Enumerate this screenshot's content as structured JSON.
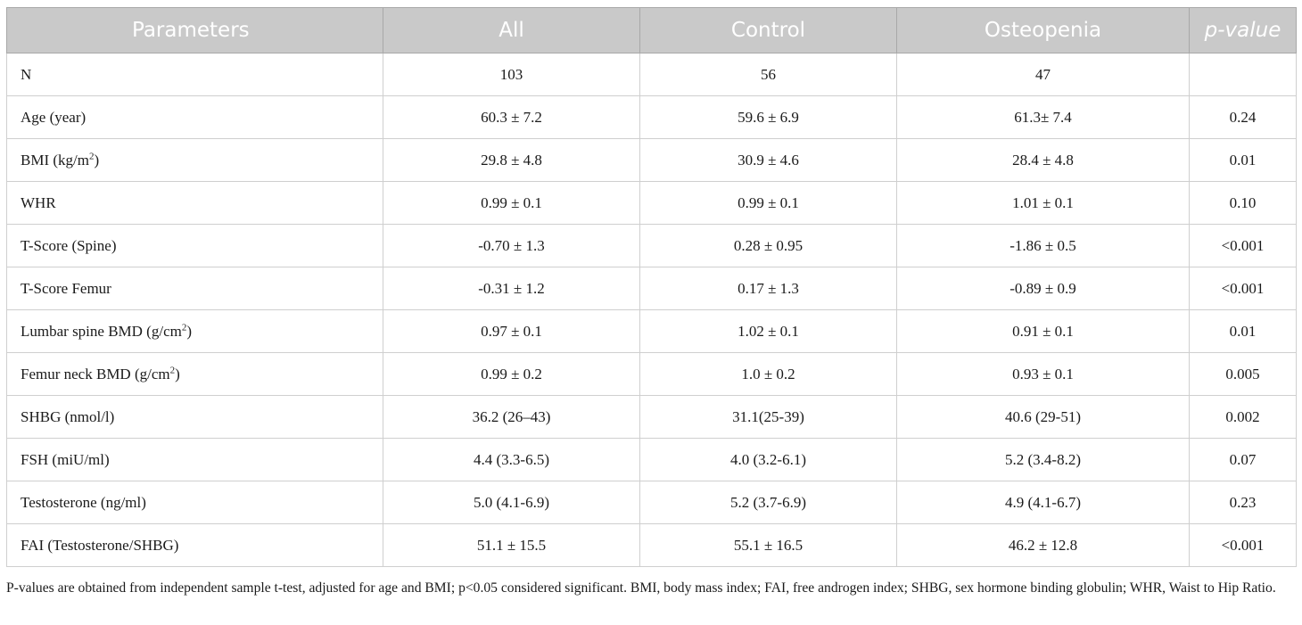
{
  "table": {
    "headers": [
      "Parameters",
      "All",
      "Control",
      "Osteopenia",
      "p-value"
    ],
    "rows": [
      {
        "param": "N",
        "sup": "",
        "all": "103",
        "control": "56",
        "osteopenia": "47",
        "p": ""
      },
      {
        "param": "Age (year)",
        "sup": "",
        "all": "60.3 ± 7.2",
        "control": "59.6 ± 6.9",
        "osteopenia": "61.3± 7.4",
        "p": "0.24"
      },
      {
        "param": "BMI (kg/m",
        "sup": "2",
        "suffix": ")",
        "all": "29.8 ± 4.8",
        "control": "30.9 ± 4.6",
        "osteopenia": "28.4 ± 4.8",
        "p": "0.01"
      },
      {
        "param": "WHR",
        "sup": "",
        "all": "0.99 ± 0.1",
        "control": "0.99 ± 0.1",
        "osteopenia": "1.01 ± 0.1",
        "p": "0.10"
      },
      {
        "param": "T-Score (Spine)",
        "sup": "",
        "all": "-0.70 ± 1.3",
        "control": "0.28 ± 0.95",
        "osteopenia": "-1.86 ± 0.5",
        "p": "<0.001"
      },
      {
        "param": "T-Score Femur",
        "sup": "",
        "all": "-0.31 ± 1.2",
        "control": "0.17 ± 1.3",
        "osteopenia": "-0.89 ± 0.9",
        "p": "<0.001"
      },
      {
        "param": "Lumbar spine BMD (g/cm",
        "sup": "2",
        "suffix": ")",
        "all": "0.97 ± 0.1",
        "control": "1.02 ± 0.1",
        "osteopenia": "0.91 ± 0.1",
        "p": "0.01"
      },
      {
        "param": "Femur neck BMD (g/cm",
        "sup": "2",
        "suffix": ")",
        "all": "0.99 ± 0.2",
        "control": "1.0 ± 0.2",
        "osteopenia": "0.93 ± 0.1",
        "p": "0.005"
      },
      {
        "param": "SHBG (nmol/l)",
        "sup": "",
        "all": "36.2 (26–43)",
        "control": "31.1(25-39)",
        "osteopenia": "40.6 (29-51)",
        "p": "0.002"
      },
      {
        "param": "FSH (miU/ml)",
        "sup": "",
        "all": "4.4 (3.3-6.5)",
        "control": "4.0 (3.2-6.1)",
        "osteopenia": "5.2 (3.4-8.2)",
        "p": "0.07"
      },
      {
        "param": "Testosterone (ng/ml)",
        "sup": "",
        "all": "5.0 (4.1-6.9)",
        "control": "5.2 (3.7-6.9)",
        "osteopenia": "4.9 (4.1-6.7)",
        "p": "0.23"
      },
      {
        "param": "FAI (Testosterone/SHBG)",
        "sup": "",
        "all": "51.1 ± 15.5",
        "control": "55.1 ± 16.5",
        "osteopenia": "46.2 ± 12.8",
        "p": "<0.001"
      }
    ]
  },
  "footnote": "P-values are obtained from independent sample t-test, adjusted for age and BMI; p<0.05 considered significant. BMI, body mass index; FAI, free androgen index; SHBG, sex hormone binding globulin; WHR, Waist to Hip Ratio."
}
